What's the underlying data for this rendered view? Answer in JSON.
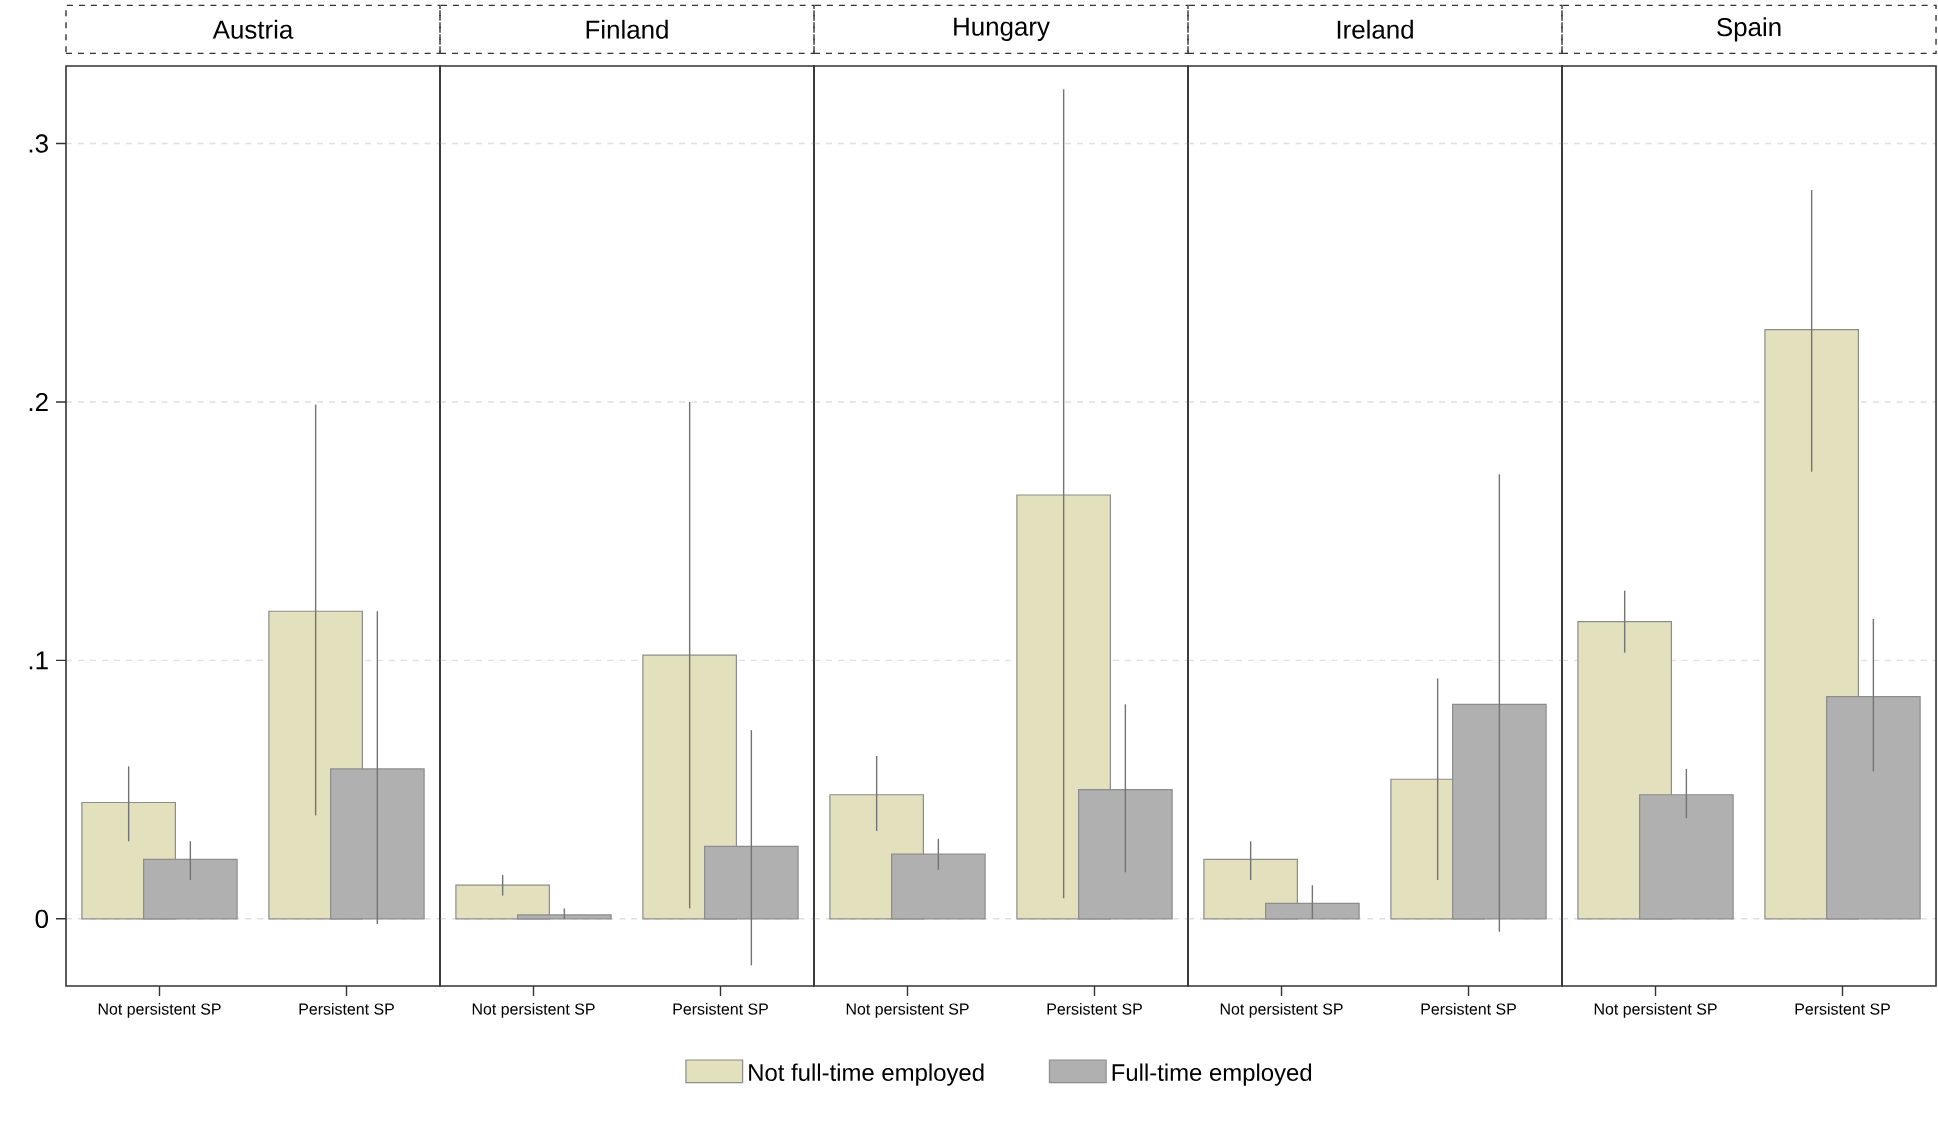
{
  "chart_data": [
    {
      "type": "bar",
      "title": "Austria",
      "categories": [
        "Not persistent SP",
        "Persistent SP"
      ],
      "ylim": [
        -0.026,
        0.33
      ],
      "yticks": [
        0,
        {
          "value": 0.1,
          "label": ".1"
        },
        {
          "value": 0.2,
          "label": ".2"
        },
        {
          "value": 0.3,
          "label": ".3"
        }
      ],
      "grid": "y",
      "series": [
        {
          "color": "#e3e0be",
          "values": [
            0.045,
            0.119
          ],
          "errors": [
            [
              0.03,
              0.059
            ],
            [
              0.04,
              0.199
            ]
          ]
        },
        {
          "color": "#b0b0b0",
          "values": [
            0.023,
            0.058
          ],
          "errors": [
            [
              0.015,
              0.03
            ],
            [
              -0.002,
              0.119
            ]
          ]
        }
      ]
    },
    {
      "type": "bar",
      "title": "Finland",
      "categories": [
        "Not persistent SP",
        "Persistent SP"
      ],
      "ylim": [
        -0.026,
        0.33
      ],
      "yticks": [
        0,
        0.1,
        0.2,
        0.3
      ],
      "grid": "y",
      "tick_labels": "x",
      "series": [
        {
          "color": "#e3e0be",
          "values": [
            0.013,
            0.102
          ],
          "errors": [
            [
              0.009,
              0.017
            ],
            [
              0.004,
              0.2
            ]
          ]
        },
        {
          "color": "#b0b0b0",
          "values": [
            0.0015,
            0.028
          ],
          "errors": [
            [
              0.0,
              0.004
            ],
            [
              -0.018,
              0.073
            ]
          ]
        }
      ]
    },
    {
      "type": "bar",
      "title": "Hungary",
      "categories": [
        "Not persistent SP",
        "Persistent SP"
      ],
      "ylim": [
        -0.026,
        0.33
      ],
      "yticks": [
        0,
        0.1,
        0.2,
        0.3
      ],
      "grid": "y",
      "tick_labels": "x",
      "legend": "bottom",
      "series": [
        {
          "name": "Not full-time employed",
          "color": "#e3e0be",
          "values": [
            0.048,
            0.164
          ],
          "errors": [
            [
              0.034,
              0.063
            ],
            [
              0.008,
              0.321
            ]
          ]
        },
        {
          "name": "Full-time employed",
          "color": "#b0b0b0",
          "values": [
            0.025,
            0.05
          ],
          "errors": [
            [
              0.019,
              0.031
            ],
            [
              0.018,
              0.083
            ]
          ]
        }
      ]
    },
    {
      "type": "bar",
      "title": "Ireland",
      "categories": [
        "Not persistent SP",
        "Persistent SP"
      ],
      "ylim": [
        -0.026,
        0.33
      ],
      "yticks": [
        0,
        0.1,
        0.2,
        0.3
      ],
      "grid": "y",
      "tick_labels": "x",
      "series": [
        {
          "color": "#e3e0be",
          "values": [
            0.023,
            0.054
          ],
          "errors": [
            [
              0.015,
              0.03
            ],
            [
              0.015,
              0.093
            ]
          ]
        },
        {
          "color": "#b0b0b0",
          "values": [
            0.006,
            0.083
          ],
          "errors": [
            [
              0.0,
              0.013
            ],
            [
              -0.005,
              0.172
            ]
          ]
        }
      ]
    },
    {
      "type": "bar",
      "title": "Spain",
      "categories": [
        "Not persistent SP",
        "Persistent SP"
      ],
      "ylim": [
        -0.026,
        0.33
      ],
      "yticks": [
        0,
        0.1,
        0.2,
        0.3
      ],
      "grid": "y",
      "tick_labels": "x",
      "series": [
        {
          "color": "#e3e0be",
          "values": [
            0.115,
            0.228
          ],
          "errors": [
            [
              0.103,
              0.127
            ],
            [
              0.173,
              0.282
            ]
          ]
        },
        {
          "color": "#b0b0b0",
          "values": [
            0.048,
            0.086
          ],
          "errors": [
            [
              0.039,
              0.058
            ],
            [
              0.057,
              0.116
            ]
          ]
        }
      ]
    }
  ]
}
